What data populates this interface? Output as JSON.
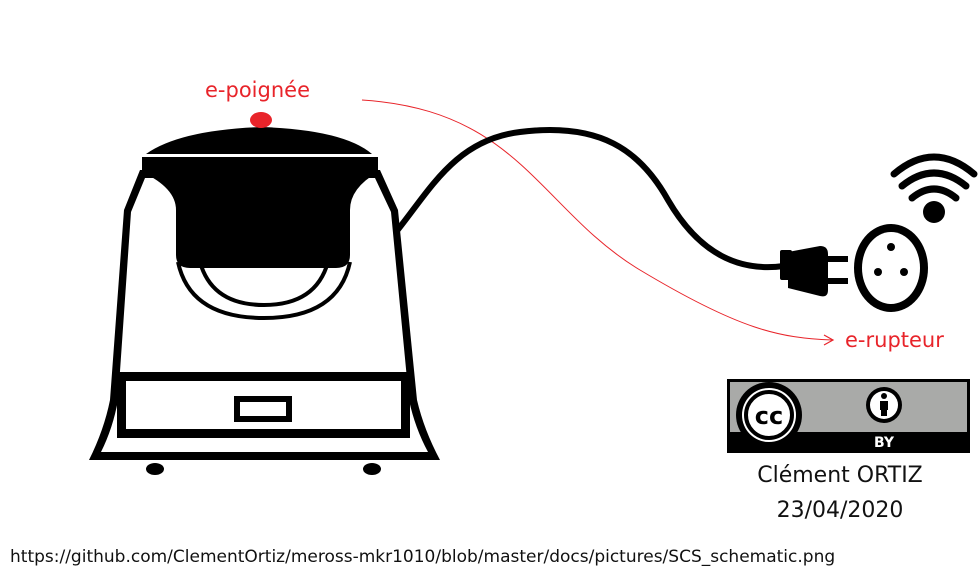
{
  "labels": {
    "handle": "e-poignée",
    "switch": "e-rupteur"
  },
  "license": {
    "cc_text": "cc",
    "by_text": "BY",
    "author": "Clément ORTIZ",
    "date": "23/04/2020"
  },
  "source_url": "https://github.com/ClementOrtiz/meross-mkr1010/blob/master/docs/pictures/SCS_schematic.png",
  "colors": {
    "accent_red": "#e8242a",
    "ink": "#000000",
    "badge_gray": "#a9aaa8"
  },
  "icons": [
    "wifi-icon",
    "plug-icon",
    "socket-icon",
    "cc-icon",
    "attribution-icon"
  ]
}
